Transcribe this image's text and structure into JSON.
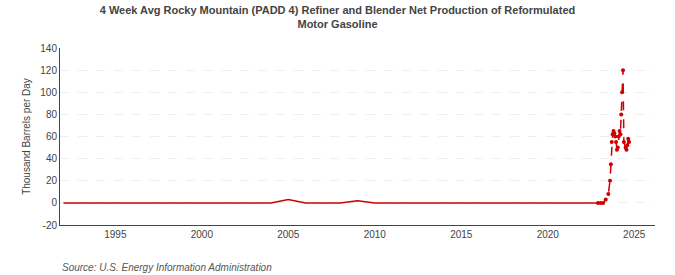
{
  "chart_data": {
    "type": "line",
    "title": "4 Week Avg Rocky Mountain (PADD 4) Refiner and Blender Net Production of Reformulated\nMotor Gasoline",
    "ylabel": "Thousand Barrels per Day",
    "annotations": [
      "Source: U.S. Energy Information Administration"
    ],
    "xlim": [
      1991.8,
      2026.2
    ],
    "xticks": [
      1995,
      2000,
      2005,
      2010,
      2015,
      2020,
      2025
    ],
    "ylim": [
      -20,
      140
    ],
    "yticks": [
      -20,
      0,
      20,
      40,
      60,
      80,
      100,
      120,
      140
    ],
    "grid": true,
    "series": [
      {
        "color": "#cc0000",
        "line_style": "solid",
        "x": [
          1992,
          1993,
          1994,
          1995,
          1996,
          1997,
          1998,
          1999,
          2000,
          2001,
          2002,
          2003,
          2004,
          2005,
          2006,
          2007,
          2008,
          2009,
          2010,
          2011,
          2012,
          2013,
          2014,
          2015,
          2016,
          2017,
          2018,
          2019,
          2020,
          2021,
          2022,
          2022.9
        ],
        "values": [
          0,
          0,
          0,
          0,
          0,
          0,
          0,
          0,
          0,
          0,
          0,
          0,
          0,
          3,
          0,
          0,
          0,
          2,
          0,
          0,
          0,
          0,
          0,
          0,
          0,
          0,
          0,
          0,
          0,
          0,
          0,
          0
        ]
      },
      {
        "color": "#cc0000",
        "line_style": "dashed",
        "marker": "circle",
        "x": [
          2022.9,
          2023.05,
          2023.2,
          2023.35,
          2023.5,
          2023.6,
          2023.65,
          2023.7,
          2023.75,
          2023.8,
          2023.85,
          2023.9,
          2023.95,
          2024.0,
          2024.05,
          2024.1,
          2024.15,
          2024.2,
          2024.25,
          2024.3,
          2024.35,
          2024.4,
          2024.5,
          2024.55,
          2024.6,
          2024.65,
          2024.7
        ],
        "values": [
          0,
          0,
          0,
          3,
          8,
          20,
          35,
          55,
          62,
          65,
          63,
          60,
          55,
          48,
          50,
          60,
          65,
          62,
          80,
          100,
          120,
          55,
          50,
          48,
          52,
          58,
          55
        ]
      }
    ]
  }
}
